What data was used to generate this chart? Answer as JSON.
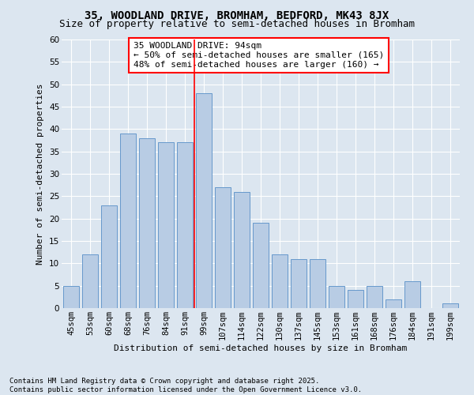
{
  "title": "35, WOODLAND DRIVE, BROMHAM, BEDFORD, MK43 8JX",
  "subtitle": "Size of property relative to semi-detached houses in Bromham",
  "xlabel": "Distribution of semi-detached houses by size in Bromham",
  "ylabel": "Number of semi-detached properties",
  "categories": [
    "45sqm",
    "53sqm",
    "60sqm",
    "68sqm",
    "76sqm",
    "84sqm",
    "91sqm",
    "99sqm",
    "107sqm",
    "114sqm",
    "122sqm",
    "130sqm",
    "137sqm",
    "145sqm",
    "153sqm",
    "161sqm",
    "168sqm",
    "176sqm",
    "184sqm",
    "191sqm",
    "199sqm"
  ],
  "values": [
    5,
    12,
    23,
    39,
    38,
    37,
    37,
    48,
    27,
    26,
    19,
    12,
    11,
    11,
    5,
    4,
    5,
    2,
    6,
    0,
    1
  ],
  "bar_color": "#b8cce4",
  "bar_edge_color": "#6699cc",
  "vline_idx": 7,
  "vline_color": "red",
  "annotation_title": "35 WOODLAND DRIVE: 94sqm",
  "annotation_line1": "← 50% of semi-detached houses are smaller (165)",
  "annotation_line2": "48% of semi-detached houses are larger (160) →",
  "annotation_box_color": "white",
  "annotation_box_edge": "red",
  "ylim": [
    0,
    60
  ],
  "yticks": [
    0,
    5,
    10,
    15,
    20,
    25,
    30,
    35,
    40,
    45,
    50,
    55,
    60
  ],
  "footer_line1": "Contains HM Land Registry data © Crown copyright and database right 2025.",
  "footer_line2": "Contains public sector information licensed under the Open Government Licence v3.0.",
  "bg_color": "#dce6f0",
  "plot_bg_color": "#dce6f0",
  "title_fontsize": 10,
  "subtitle_fontsize": 9,
  "axis_label_fontsize": 8,
  "tick_fontsize": 7.5,
  "annotation_fontsize": 8,
  "footer_fontsize": 6.5
}
